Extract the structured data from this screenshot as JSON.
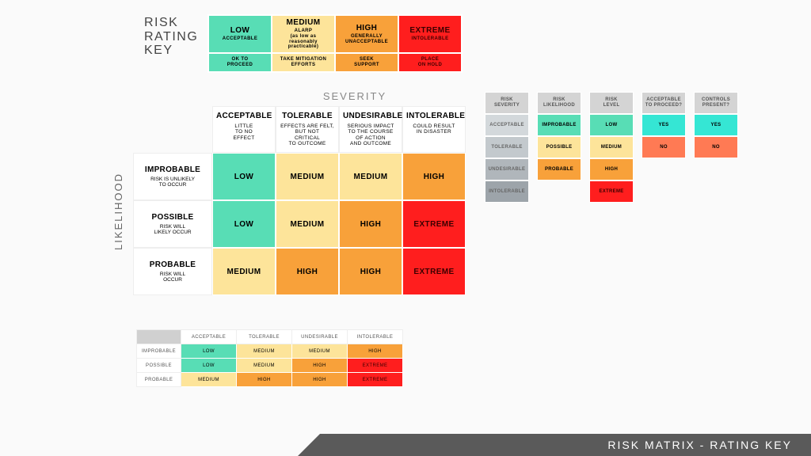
{
  "colors": {
    "low": "#58ddb5",
    "medium": "#fde49a",
    "high": "#f8a13a",
    "extreme": "#ff1e1e",
    "yes": "#35e6d4",
    "no": "#ff7a54",
    "sev0": "#d3d8db",
    "sev1": "#c3c9cd",
    "sev2": "#b0b6bb",
    "sev3": "#9da4aa",
    "headerGrey": "#d4d4d4"
  },
  "title": "RISK\nRATING\nKEY",
  "footer": "RISK MATRIX - RATING KEY",
  "ratingKey": {
    "row1": [
      {
        "level": "LOW",
        "sub": "ACCEPTABLE",
        "color": "low"
      },
      {
        "level": "MEDIUM",
        "sub": "ALARP\n(as low as reasonably\npracticable)",
        "color": "medium"
      },
      {
        "level": "HIGH",
        "sub": "GENERALLY\nUNACCEPTABLE",
        "color": "high"
      },
      {
        "level": "EXTREME",
        "sub": "INTOLERABLE",
        "color": "extreme",
        "dark": true
      }
    ],
    "row2": [
      {
        "text": "OK TO\nPROCEED",
        "color": "low"
      },
      {
        "text": "TAKE MITIGATION\nEFFORTS",
        "color": "medium"
      },
      {
        "text": "SEEK\nSUPPORT",
        "color": "high"
      },
      {
        "text": "PLACE\nON HOLD",
        "color": "extreme",
        "dark": true
      }
    ]
  },
  "matrix": {
    "severityLabel": "SEVERITY",
    "likelihoodLabel": "LIKELIHOOD",
    "cols": [
      {
        "h": "ACCEPTABLE",
        "d": "LITTLE\nTO NO\nEFFECT"
      },
      {
        "h": "TOLERABLE",
        "d": "EFFECTS ARE FELT,\nBUT NOT\nCRITICAL\nTO OUTCOME"
      },
      {
        "h": "UNDESIRABLE",
        "d": "SERIOUS IMPACT\nTO THE COURSE\nOF ACTION\nAND OUTCOME"
      },
      {
        "h": "INTOLERABLE",
        "d": "COULD RESULT\nIN DISASTER"
      }
    ],
    "rows": [
      {
        "h": "IMPROBABLE",
        "d": "RISK IS UNLIKELY\nTO OCCUR",
        "cells": [
          {
            "t": "LOW",
            "c": "low"
          },
          {
            "t": "MEDIUM",
            "c": "medium"
          },
          {
            "t": "MEDIUM",
            "c": "medium"
          },
          {
            "t": "HIGH",
            "c": "high"
          }
        ]
      },
      {
        "h": "POSSIBLE",
        "d": "RISK WILL\nLIKELY OCCUR",
        "cells": [
          {
            "t": "LOW",
            "c": "low"
          },
          {
            "t": "MEDIUM",
            "c": "medium"
          },
          {
            "t": "HIGH",
            "c": "high"
          },
          {
            "t": "EXTREME",
            "c": "extreme",
            "dark": true
          }
        ]
      },
      {
        "h": "PROBABLE",
        "d": "RISK WILL\nOCCUR",
        "cells": [
          {
            "t": "MEDIUM",
            "c": "medium"
          },
          {
            "t": "HIGH",
            "c": "high"
          },
          {
            "t": "HIGH",
            "c": "high"
          },
          {
            "t": "EXTREME",
            "c": "extreme",
            "dark": true
          }
        ]
      }
    ]
  },
  "miniMatrix": {
    "cols": [
      "ACCEPTABLE",
      "TOLERABLE",
      "UNDESIRABLE",
      "INTOLERABLE"
    ],
    "rows": [
      {
        "h": "IMPROBABLE",
        "cells": [
          {
            "t": "LOW",
            "c": "low"
          },
          {
            "t": "MEDIUM",
            "c": "medium"
          },
          {
            "t": "MEDIUM",
            "c": "medium"
          },
          {
            "t": "HIGH",
            "c": "high"
          }
        ]
      },
      {
        "h": "POSSIBLE",
        "cells": [
          {
            "t": "LOW",
            "c": "low"
          },
          {
            "t": "MEDIUM",
            "c": "medium"
          },
          {
            "t": "HIGH",
            "c": "high"
          },
          {
            "t": "EXTREME",
            "c": "extreme",
            "dark": true
          }
        ]
      },
      {
        "h": "PROBABLE",
        "cells": [
          {
            "t": "MEDIUM",
            "c": "medium"
          },
          {
            "t": "HIGH",
            "c": "high"
          },
          {
            "t": "HIGH",
            "c": "high"
          },
          {
            "t": "EXTREME",
            "c": "extreme",
            "dark": true
          }
        ]
      }
    ]
  },
  "sideKeys": [
    {
      "name": "severity",
      "head": "RISK\nSEVERITY",
      "cells": [
        {
          "t": "ACCEPTABLE",
          "bg": "sev0"
        },
        {
          "t": "TOLERABLE",
          "bg": "sev1"
        },
        {
          "t": "UNDESIRABLE",
          "bg": "sev2"
        },
        {
          "t": "INTOLERABLE",
          "bg": "sev3"
        }
      ]
    },
    {
      "name": "likelihood",
      "head": "RISK\nLIKELIHOOD",
      "cells": [
        {
          "t": "IMPROBABLE",
          "bg": "low"
        },
        {
          "t": "POSSIBLE",
          "bg": "medium"
        },
        {
          "t": "PROBABLE",
          "bg": "high"
        }
      ]
    },
    {
      "name": "level",
      "head": "RISK\nLEVEL",
      "cells": [
        {
          "t": "LOW",
          "bg": "low"
        },
        {
          "t": "MEDIUM",
          "bg": "medium"
        },
        {
          "t": "HIGH",
          "bg": "high"
        },
        {
          "t": "EXTREME",
          "bg": "extreme",
          "dark": true
        }
      ]
    },
    {
      "name": "proceed",
      "head": "ACCEPTABLE\nTO PROCEED?",
      "cells": [
        {
          "t": "YES",
          "bg": "yes"
        },
        {
          "t": "NO",
          "bg": "no"
        }
      ]
    },
    {
      "name": "controls",
      "head": "CONTROLS\nPRESENT?",
      "cells": [
        {
          "t": "YES",
          "bg": "yes"
        },
        {
          "t": "NO",
          "bg": "no"
        }
      ]
    }
  ]
}
